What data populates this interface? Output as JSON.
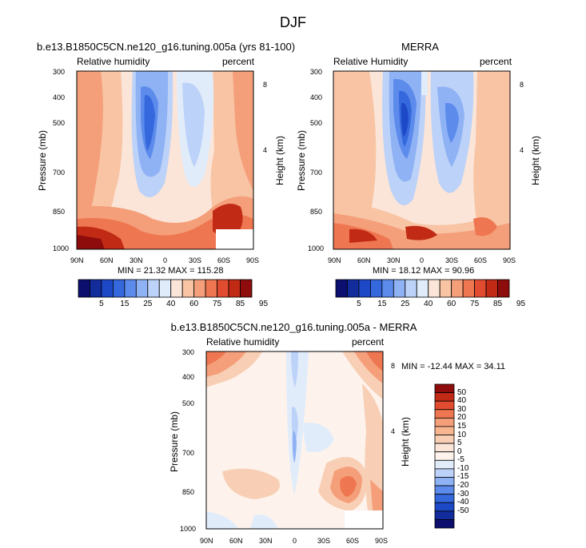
{
  "figure": {
    "title": "DJF"
  },
  "panels": [
    {
      "title": "b.e13.B1850C5CN.ne120_g16.tuning.005a (yrs 81-100)",
      "variable": "Relative humidity",
      "units": "percent",
      "ylabel_left": "Pressure (mb)",
      "ylabel_right": "Height (km)",
      "minmax": "MIN = 21.32   MAX = 115.28"
    },
    {
      "title": "MERRA",
      "variable": "Relative Humidity",
      "units": "percent",
      "ylabel_left": "Pressure (mb)",
      "ylabel_right": "Height (km)",
      "minmax": "MIN = 18.12   MAX = 90.96"
    },
    {
      "title": "b.e13.B1850C5CN.ne120_g16.tuning.005a - MERRA",
      "variable": "Relative humidity",
      "units": "percent",
      "ylabel_left": "Pressure (mb)",
      "ylabel_right": "Height (km)",
      "minmax": "MIN = -12.44   MAX =  34.11"
    }
  ],
  "chart_data": [
    {
      "type": "heatmap",
      "title": "b.e13.B1850C5CN.ne120_g16.tuning.005a (yrs 81-100)",
      "xlabel": "",
      "ylabel": "Pressure (mb)",
      "y2label": "Height (km)",
      "x_ticks": [
        "90N",
        "60N",
        "30N",
        "0",
        "30S",
        "60S",
        "90S"
      ],
      "y_ticks": [
        "300",
        "400",
        "500",
        "700",
        "850",
        "1000"
      ],
      "y2_ticks": [
        "8",
        "4"
      ],
      "ylim": [
        1000,
        300
      ],
      "levels": [
        5,
        15,
        25,
        40,
        60,
        75,
        85,
        95
      ],
      "min": 21.32,
      "max": 115.28
    },
    {
      "type": "heatmap",
      "title": "MERRA",
      "xlabel": "",
      "ylabel": "Pressure (mb)",
      "y2label": "Height (km)",
      "x_ticks": [
        "90N",
        "60N",
        "30N",
        "0",
        "30S",
        "60S",
        "90S"
      ],
      "y_ticks": [
        "300",
        "400",
        "500",
        "700",
        "850",
        "1000"
      ],
      "y2_ticks": [
        "8",
        "4"
      ],
      "ylim": [
        1000,
        300
      ],
      "levels": [
        5,
        15,
        25,
        40,
        60,
        75,
        85,
        95
      ],
      "min": 18.12,
      "max": 90.96
    },
    {
      "type": "heatmap",
      "title": "b.e13.B1850C5CN.ne120_g16.tuning.005a - MERRA",
      "xlabel": "",
      "ylabel": "Pressure (mb)",
      "y2label": "Height (km)",
      "x_ticks": [
        "90N",
        "60N",
        "30N",
        "0",
        "30S",
        "60S",
        "90S"
      ],
      "y_ticks": [
        "300",
        "400",
        "500",
        "700",
        "850",
        "1000"
      ],
      "y2_ticks": [
        "8",
        "4"
      ],
      "ylim": [
        1000,
        300
      ],
      "levels": [
        50,
        40,
        30,
        20,
        15,
        10,
        5,
        0,
        -5,
        -10,
        -15,
        -20,
        -30,
        -40,
        -50
      ],
      "min": -12.44,
      "max": 34.11
    }
  ],
  "colorbars": {
    "rh_labels": [
      "5",
      "15",
      "25",
      "40",
      "60",
      "75",
      "85",
      "95"
    ],
    "rh_colors": [
      "#0c0f6e",
      "#132c9c",
      "#1d49c6",
      "#3568dd",
      "#5c8bec",
      "#8fb2f4",
      "#bcd2f8",
      "#e1ecfb",
      "#fbe5d8",
      "#f8c4a4",
      "#f49f7a",
      "#ee7650",
      "#e14b2f",
      "#c12a14",
      "#8e0c0c"
    ],
    "diff_labels": [
      "50",
      "40",
      "30",
      "20",
      "15",
      "10",
      "5",
      "0",
      "-5",
      "-10",
      "-15",
      "-20",
      "-30",
      "-40",
      "-50"
    ],
    "diff_colors": [
      "#8e0c0c",
      "#c12a14",
      "#e14b2f",
      "#ee7650",
      "#f49f7a",
      "#f8b690",
      "#f8cfb5",
      "#fbe5d8",
      "#fdf3ec",
      "#e1ecfb",
      "#bcd2f8",
      "#8fb2f4",
      "#5c8bec",
      "#3568dd",
      "#1d49c6",
      "#132c9c",
      "#0c0f6e"
    ]
  }
}
